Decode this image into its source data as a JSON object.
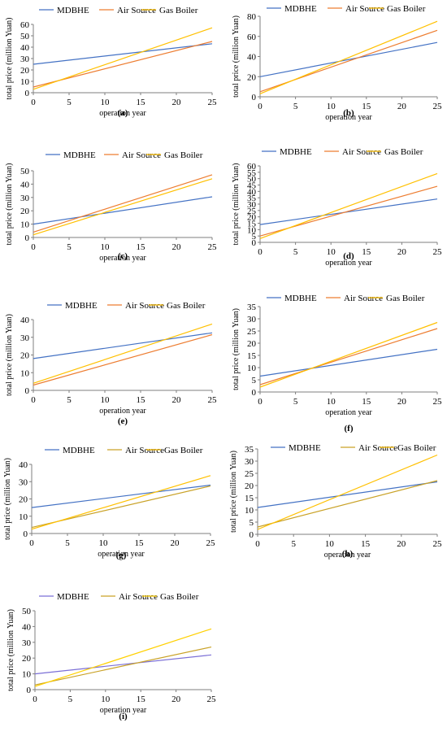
{
  "legend_labels": [
    "MDBHE",
    "Air Source",
    "Gas Boiler"
  ],
  "colors": {
    "mdbhe": "#4472C4",
    "air_source": "#ED7D31",
    "gas_boiler": "#FFC000",
    "axis": "#7f7f7f"
  },
  "chart_data": [
    {
      "panel": "(a)",
      "type": "line",
      "xlabel": "operation year",
      "ylabel": "total price (million Yuan)",
      "xlim": [
        0,
        25
      ],
      "xticks": [
        0,
        5,
        10,
        15,
        20,
        25
      ],
      "ylim": [
        0,
        60
      ],
      "yticks": [
        0,
        10,
        20,
        30,
        40,
        50,
        60
      ],
      "legend": "top",
      "grid": false,
      "series": [
        {
          "name": "MDBHE",
          "color": "#4472C4",
          "x": [
            0,
            25
          ],
          "y": [
            25,
            43
          ]
        },
        {
          "name": "Air Source",
          "color": "#ED7D31",
          "x": [
            0,
            25
          ],
          "y": [
            5,
            45
          ]
        },
        {
          "name": "Gas Boiler",
          "color": "#FFC000",
          "x": [
            0,
            25
          ],
          "y": [
            3,
            57
          ]
        }
      ]
    },
    {
      "panel": "(b)",
      "type": "line",
      "xlabel": "operation year",
      "ylabel": "total price (million Yuan)",
      "xlim": [
        0,
        25
      ],
      "xticks": [
        0,
        5,
        10,
        15,
        20,
        25
      ],
      "ylim": [
        0,
        80
      ],
      "yticks": [
        0,
        20,
        40,
        60,
        80
      ],
      "legend": "top",
      "grid": false,
      "series": [
        {
          "name": "MDBHE",
          "color": "#4472C4",
          "x": [
            0,
            25
          ],
          "y": [
            20,
            54
          ]
        },
        {
          "name": "Air Source",
          "color": "#ED7D31",
          "x": [
            0,
            25
          ],
          "y": [
            5,
            66
          ]
        },
        {
          "name": "Gas Boiler",
          "color": "#FFC000",
          "x": [
            0,
            25
          ],
          "y": [
            3,
            75
          ]
        }
      ]
    },
    {
      "panel": "(c)",
      "type": "line",
      "xlabel": "operation year",
      "ylabel": "total price (million Yuan)",
      "xlim": [
        0,
        25
      ],
      "xticks": [
        0,
        5,
        10,
        15,
        20,
        25
      ],
      "ylim": [
        0,
        50
      ],
      "yticks": [
        0,
        10,
        20,
        30,
        40,
        50
      ],
      "legend": "top",
      "grid": false,
      "series": [
        {
          "name": "MDBHE",
          "color": "#4472C4",
          "x": [
            0,
            25
          ],
          "y": [
            10,
            30.5
          ]
        },
        {
          "name": "Air Source",
          "color": "#ED7D31",
          "x": [
            0,
            25
          ],
          "y": [
            4,
            47
          ]
        },
        {
          "name": "Gas Boiler",
          "color": "#FFC000",
          "x": [
            0,
            25
          ],
          "y": [
            2,
            44
          ]
        }
      ]
    },
    {
      "panel": "(d)",
      "type": "line",
      "xlabel": "operation year",
      "ylabel": "total price (million Yuan)",
      "xlim": [
        0,
        25
      ],
      "xticks": [
        0,
        5,
        10,
        15,
        20,
        25
      ],
      "ylim": [
        0,
        60
      ],
      "yticks": [
        0,
        5,
        10,
        15,
        20,
        25,
        30,
        35,
        40,
        45,
        50,
        55,
        60
      ],
      "legend": "top",
      "grid": false,
      "series": [
        {
          "name": "MDBHE",
          "color": "#4472C4",
          "x": [
            0,
            25
          ],
          "y": [
            14,
            34
          ]
        },
        {
          "name": "Air Source",
          "color": "#ED7D31",
          "x": [
            0,
            25
          ],
          "y": [
            5,
            44
          ]
        },
        {
          "name": "Gas Boiler",
          "color": "#FFC000",
          "x": [
            0,
            25
          ],
          "y": [
            3,
            54
          ]
        }
      ]
    },
    {
      "panel": "(e)",
      "type": "line",
      "xlabel": "operation year",
      "ylabel": "total price (million Yuan)",
      "xlim": [
        0,
        25
      ],
      "xticks": [
        0,
        5,
        10,
        15,
        20,
        25
      ],
      "ylim": [
        0,
        40
      ],
      "yticks": [
        0,
        10,
        20,
        30,
        40
      ],
      "legend": "top",
      "grid": false,
      "series": [
        {
          "name": "MDBHE",
          "color": "#4472C4",
          "x": [
            0,
            25
          ],
          "y": [
            18,
            32.5
          ]
        },
        {
          "name": "Air Source",
          "color": "#ED7D31",
          "x": [
            0,
            25
          ],
          "y": [
            3,
            31.5
          ]
        },
        {
          "name": "Gas Boiler",
          "color": "#FFC000",
          "x": [
            0,
            25
          ],
          "y": [
            4,
            37.5
          ]
        }
      ]
    },
    {
      "panel": "(f)",
      "type": "line",
      "xlabel": "operation year",
      "ylabel": "total price (million Yuan)",
      "xlim": [
        0,
        25
      ],
      "xticks": [
        0,
        5,
        10,
        15,
        20,
        25
      ],
      "ylim": [
        0,
        35
      ],
      "yticks": [
        0,
        5,
        10,
        15,
        20,
        25,
        30,
        35
      ],
      "legend": "top",
      "grid": false,
      "series": [
        {
          "name": "MDBHE",
          "color": "#4472C4",
          "x": [
            0,
            25
          ],
          "y": [
            6.5,
            17.5
          ]
        },
        {
          "name": "Air Source",
          "color": "#ED7D31",
          "x": [
            0,
            25
          ],
          "y": [
            3,
            26
          ]
        },
        {
          "name": "Gas Boiler",
          "color": "#FFC000",
          "x": [
            0,
            25
          ],
          "y": [
            2,
            28.5
          ]
        }
      ]
    },
    {
      "panel": "(g)",
      "type": "line",
      "xlabel": "operation year",
      "ylabel": "total price (million Yuan)",
      "xlim": [
        0,
        25
      ],
      "xticks": [
        0,
        5,
        10,
        15,
        20,
        25
      ],
      "ylim": [
        0,
        40
      ],
      "yticks": [
        0,
        10,
        20,
        30,
        40
      ],
      "legend": "top",
      "grid": false,
      "series": [
        {
          "name": "MDBHE",
          "color": "#4472C4",
          "x": [
            0,
            25
          ],
          "y": [
            15,
            28
          ]
        },
        {
          "name": "Air Source",
          "color": "#C9A227",
          "x": [
            0,
            25
          ],
          "y": [
            3.5,
            27.5
          ]
        },
        {
          "name": "Gas Boiler",
          "color": "#FFC000",
          "x": [
            0,
            25
          ],
          "y": [
            2.5,
            33.5
          ]
        }
      ]
    },
    {
      "panel": "(h)",
      "type": "line",
      "xlabel": "operation year",
      "ylabel": "total price (million Yuan)",
      "xlim": [
        0,
        25
      ],
      "xticks": [
        0,
        5,
        10,
        15,
        20,
        25
      ],
      "ylim": [
        0,
        35
      ],
      "yticks": [
        0,
        5,
        10,
        15,
        20,
        25,
        30,
        35
      ],
      "legend": "top",
      "grid": false,
      "series": [
        {
          "name": "MDBHE",
          "color": "#4472C4",
          "x": [
            0,
            25
          ],
          "y": [
            11,
            21.5
          ]
        },
        {
          "name": "Air Source",
          "color": "#C9A227",
          "x": [
            0,
            25
          ],
          "y": [
            3,
            22
          ]
        },
        {
          "name": "Gas Boiler",
          "color": "#FFC000",
          "x": [
            0,
            25
          ],
          "y": [
            2,
            32.5
          ]
        }
      ]
    },
    {
      "panel": "(i)",
      "type": "line",
      "xlabel": "operation year",
      "ylabel": "total price (million Yuan)",
      "xlim": [
        0,
        25
      ],
      "xticks": [
        0,
        5,
        10,
        15,
        20,
        25
      ],
      "ylim": [
        0,
        50
      ],
      "yticks": [
        0,
        10,
        20,
        30,
        40,
        50
      ],
      "legend": "top",
      "grid": false,
      "series": [
        {
          "name": "MDBHE",
          "color": "#7B6FD6",
          "x": [
            0,
            25
          ],
          "y": [
            10,
            22
          ]
        },
        {
          "name": "Air Source",
          "color": "#C9A227",
          "x": [
            0,
            25
          ],
          "y": [
            3,
            27
          ]
        },
        {
          "name": "Gas Boiler",
          "color": "#FFD000",
          "x": [
            0,
            25
          ],
          "y": [
            2,
            38.5
          ]
        }
      ]
    }
  ]
}
